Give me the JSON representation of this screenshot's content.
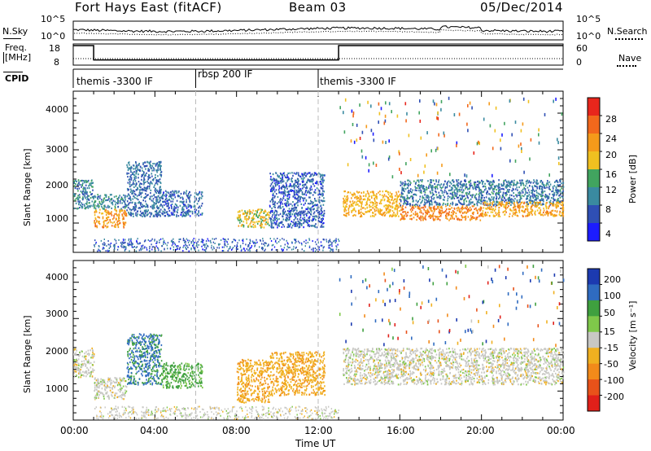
{
  "header": {
    "station_title": "Fort Hays East (fitACF)",
    "beam_label": "Beam 03",
    "date_label": "05/Dec/2014"
  },
  "noise_panel": {
    "left_label": "N.Sky",
    "left_ticks": [
      "10^5",
      "10^0"
    ],
    "right_ticks": [
      "10^5",
      "10^0"
    ],
    "right_label": "N.Search"
  },
  "freq_panel": {
    "left_label_line1": "Freq.",
    "left_label_line2": "[MHz]",
    "left_ticks": [
      "18",
      "8"
    ],
    "right_ticks": [
      "60",
      "0"
    ],
    "right_label": "Nave"
  },
  "cpid_panel": {
    "label": "CPID",
    "segments": [
      {
        "name": "themis -3300 IF",
        "start_hour": 0
      },
      {
        "name": "rbsp 200 IF",
        "start_hour": 6
      },
      {
        "name": "themis -3300 IF",
        "start_hour": 12
      }
    ]
  },
  "time_axis": {
    "tick_labels": [
      "00:00",
      "04:00",
      "08:00",
      "12:00",
      "16:00",
      "20:00",
      "00:00"
    ],
    "title": "Time UT"
  },
  "range_axis": {
    "title": "Slant Range [km]",
    "tick_labels": [
      "1000",
      "2000",
      "3000",
      "4000"
    ]
  },
  "power_colorbar": {
    "title": "Power [dB]",
    "tick_labels": [
      "4",
      "8",
      "12",
      "16",
      "20",
      "24",
      "28"
    ],
    "colors": [
      "#1c1cff",
      "#2f4fb4",
      "#3a8aa0",
      "#41a45f",
      "#f0c020",
      "#f59a1a",
      "#f2681c",
      "#e8261c"
    ]
  },
  "velocity_colorbar": {
    "title": "Velocity [m s⁻¹]",
    "tick_labels": [
      "200",
      "100",
      "50",
      "15",
      "-15",
      "-50",
      "-100",
      "-200"
    ],
    "colors": [
      "#1c3ab0",
      "#2f6bc0",
      "#3fa03f",
      "#7fc84a",
      "#c8c8c4",
      "#f0b020",
      "#f28a1a",
      "#e8521a",
      "#e0201a"
    ]
  },
  "chart_data": {
    "type": "heatmap",
    "x_unit": "hours UT",
    "xlim": [
      0,
      24
    ],
    "ylim": [
      200,
      4600
    ],
    "y_unit": "km",
    "cpid_boundaries_hours": [
      6,
      12
    ],
    "frequency_mhz": [
      {
        "start": 0,
        "end": 1,
        "value": 18
      },
      {
        "start": 1,
        "end": 13,
        "value": 10
      },
      {
        "start": 13,
        "end": 24,
        "value": 18
      }
    ],
    "power_regions": [
      {
        "t0": 0,
        "t1": 1,
        "r0": 1400,
        "r1": 2200,
        "db": 10
      },
      {
        "t0": 1,
        "t1": 2.6,
        "r0": 900,
        "r1": 1400,
        "db": 22
      },
      {
        "t0": 1,
        "t1": 2.6,
        "r0": 1400,
        "r1": 1800,
        "db": 10
      },
      {
        "t0": 2.6,
        "t1": 4.3,
        "r0": 1200,
        "r1": 2700,
        "db": 8
      },
      {
        "t0": 4.3,
        "t1": 6.3,
        "r0": 1200,
        "r1": 1900,
        "db": 7
      },
      {
        "t0": 8,
        "t1": 9.6,
        "r0": 900,
        "r1": 1400,
        "db": 18
      },
      {
        "t0": 9.6,
        "t1": 12.3,
        "r0": 900,
        "r1": 2400,
        "db": 7
      },
      {
        "t0": 13.2,
        "t1": 16,
        "r0": 1200,
        "r1": 1900,
        "db": 20
      },
      {
        "t0": 16,
        "t1": 20,
        "r0": 1100,
        "r1": 1500,
        "db": 24
      },
      {
        "t0": 16,
        "t1": 24,
        "r0": 1500,
        "r1": 2200,
        "db": 9
      },
      {
        "t0": 20,
        "t1": 24,
        "r0": 1200,
        "r1": 1600,
        "db": 21
      }
    ],
    "velocity_regions": [
      {
        "t0": 0,
        "t1": 1,
        "r0": 1400,
        "r1": 2200,
        "v": 0
      },
      {
        "t0": 1,
        "t1": 2.6,
        "r0": 800,
        "r1": 1400,
        "v": 0
      },
      {
        "t0": 2.6,
        "t1": 4.3,
        "r0": 1200,
        "r1": 2600,
        "v": 80
      },
      {
        "t0": 4.3,
        "t1": 6.3,
        "r0": 1100,
        "r1": 1800,
        "v": 40
      },
      {
        "t0": 8,
        "t1": 9.6,
        "r0": 700,
        "r1": 1900,
        "v": -40
      },
      {
        "t0": 9.6,
        "t1": 12.3,
        "r0": 900,
        "r1": 2100,
        "v": -40
      },
      {
        "t0": 13.2,
        "t1": 24,
        "r0": 1200,
        "r1": 2200,
        "v": 0
      }
    ]
  }
}
